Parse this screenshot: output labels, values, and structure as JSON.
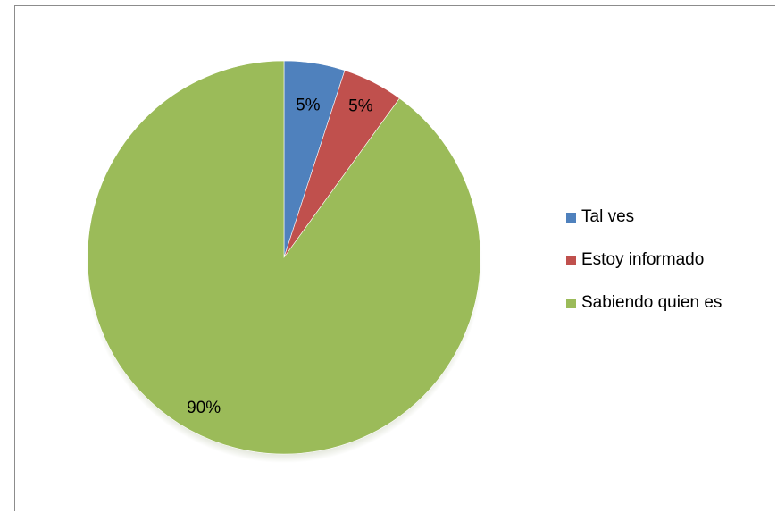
{
  "chart_data": {
    "type": "pie",
    "title": "",
    "categories": [
      "Tal ves",
      "Estoy informado",
      "Sabiendo quien es"
    ],
    "values": [
      5,
      5,
      90
    ],
    "labels": [
      "5%",
      "5%",
      "90%"
    ],
    "colors": [
      "#4f81bd",
      "#c0504d",
      "#9bbb59"
    ],
    "legend_position": "right",
    "start_angle": "12 o'clock, clockwise"
  }
}
